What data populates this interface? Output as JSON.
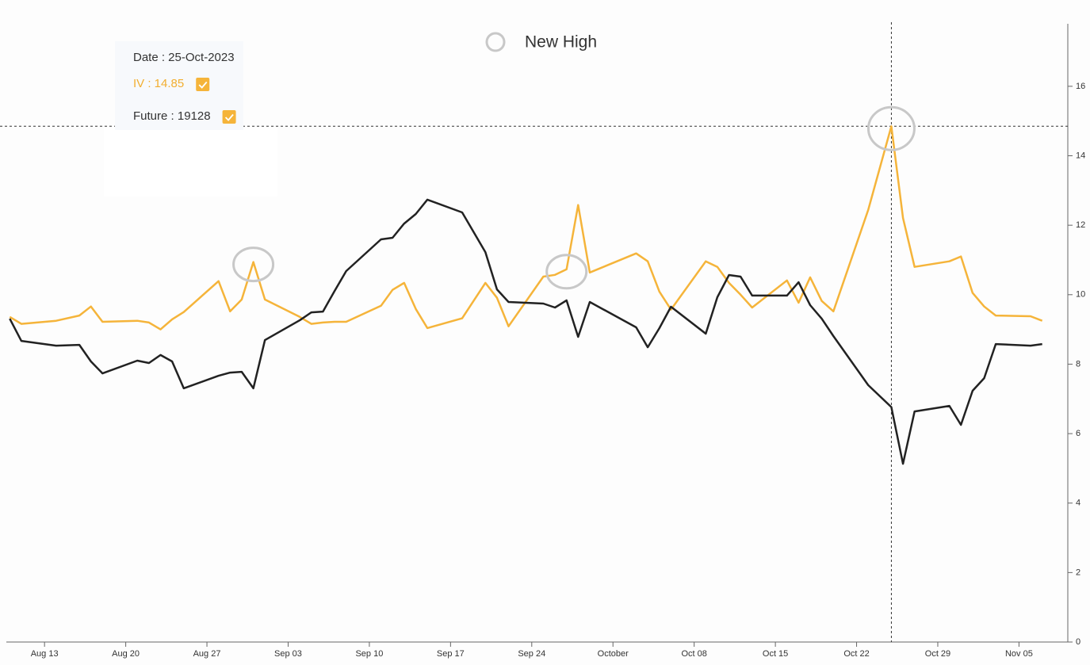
{
  "chart_data": {
    "type": "line",
    "legend": {
      "label": "New High",
      "color": "#c8c8c8"
    },
    "tooltip": {
      "date": "Date : 25-Oct-2023",
      "items": [
        {
          "text": "IV : 14.85",
          "color": "#f2ae30"
        },
        {
          "text": "Future : 19128",
          "color": "#333333"
        }
      ]
    },
    "x": [
      "2023-08-10",
      "2023-08-11",
      "2023-08-14",
      "2023-08-16",
      "2023-08-17",
      "2023-08-18",
      "2023-08-21",
      "2023-08-22",
      "2023-08-23",
      "2023-08-24",
      "2023-08-25",
      "2023-08-28",
      "2023-08-29",
      "2023-08-30",
      "2023-08-31",
      "2023-09-01",
      "2023-09-04",
      "2023-09-05",
      "2023-09-06",
      "2023-09-07",
      "2023-09-08",
      "2023-09-11",
      "2023-09-12",
      "2023-09-13",
      "2023-09-14",
      "2023-09-15",
      "2023-09-18",
      "2023-09-20",
      "2023-09-21",
      "2023-09-22",
      "2023-09-25",
      "2023-09-26",
      "2023-09-27",
      "2023-09-28",
      "2023-09-29",
      "2023-10-03",
      "2023-10-04",
      "2023-10-05",
      "2023-10-06",
      "2023-10-09",
      "2023-10-10",
      "2023-10-11",
      "2023-10-12",
      "2023-10-13",
      "2023-10-16",
      "2023-10-17",
      "2023-10-18",
      "2023-10-19",
      "2023-10-20",
      "2023-10-23",
      "2023-10-25",
      "2023-10-26",
      "2023-10-27",
      "2023-10-30",
      "2023-10-31",
      "2023-11-01",
      "2023-11-02",
      "2023-11-03",
      "2023-11-06",
      "2023-11-07"
    ],
    "series": [
      {
        "color": "#f5b43a",
        "values": [
          9.36,
          9.16,
          9.25,
          9.4,
          9.66,
          9.22,
          9.25,
          9.2,
          9.0,
          9.29,
          9.5,
          10.39,
          9.52,
          9.86,
          10.94,
          9.86,
          9.36,
          9.16,
          9.2,
          9.22,
          9.22,
          9.68,
          10.14,
          10.34,
          9.59,
          9.04,
          9.32,
          10.34,
          9.91,
          9.09,
          10.52,
          10.57,
          10.73,
          12.58,
          10.64,
          11.19,
          10.96,
          10.09,
          9.57,
          10.96,
          10.8,
          10.34,
          10.0,
          9.63,
          10.41,
          9.77,
          10.5,
          9.82,
          9.52,
          12.44,
          14.85,
          12.21,
          10.8,
          10.96,
          11.1,
          10.05,
          9.66,
          9.4,
          9.38,
          9.25
        ]
      },
      {
        "color": "#222222",
        "axis": "y2",
        "values": [
          19571,
          19460,
          19436,
          19440,
          19357,
          19297,
          19361,
          19349,
          19389,
          19357,
          19222,
          19285,
          19301,
          19305,
          19222,
          19464,
          19563,
          19603,
          19607,
          19710,
          19810,
          19969,
          19977,
          20048,
          20096,
          20168,
          20104,
          19905,
          19718,
          19655,
          19647,
          19627,
          19663,
          19480,
          19655,
          19528,
          19428,
          19524,
          19631,
          19496,
          19679,
          19790,
          19782,
          19687,
          19687,
          19754,
          19639,
          19571,
          19484,
          19238,
          19128,
          18844,
          19106,
          19134,
          19039,
          19210,
          19273,
          19444,
          19436,
          19444
        ]
      }
    ],
    "new_high_dates": [
      "2023-08-31",
      "2023-09-27",
      "2023-10-25"
    ],
    "crosshair_date": "2023-10-25",
    "xlim": [
      "2023-08-09T17:00:00Z",
      "2023-11-09T05:00:00Z"
    ],
    "xticks": [
      {
        "value": "2023-08-13",
        "label": "Aug 13"
      },
      {
        "value": "2023-08-20",
        "label": "Aug 20"
      },
      {
        "value": "2023-08-27",
        "label": "Aug 27"
      },
      {
        "value": "2023-09-03",
        "label": "Sep 03"
      },
      {
        "value": "2023-09-10",
        "label": "Sep 10"
      },
      {
        "value": "2023-09-17",
        "label": "Sep 17"
      },
      {
        "value": "2023-09-24",
        "label": "Sep 24"
      },
      {
        "value": "2023-10-01",
        "label": "October"
      },
      {
        "value": "2023-10-08",
        "label": "Oct 08"
      },
      {
        "value": "2023-10-15",
        "label": "Oct 15"
      },
      {
        "value": "2023-10-22",
        "label": "Oct 22"
      },
      {
        "value": "2023-10-29",
        "label": "Oct 29"
      },
      {
        "value": "2023-11-05",
        "label": "Nov 05"
      }
    ],
    "ylim": [
      0,
      17.8
    ],
    "yticks": [
      0,
      2,
      4,
      6,
      8,
      10,
      12,
      14,
      16
    ],
    "y2lim": [
      17950,
      21050
    ],
    "grid": false
  }
}
